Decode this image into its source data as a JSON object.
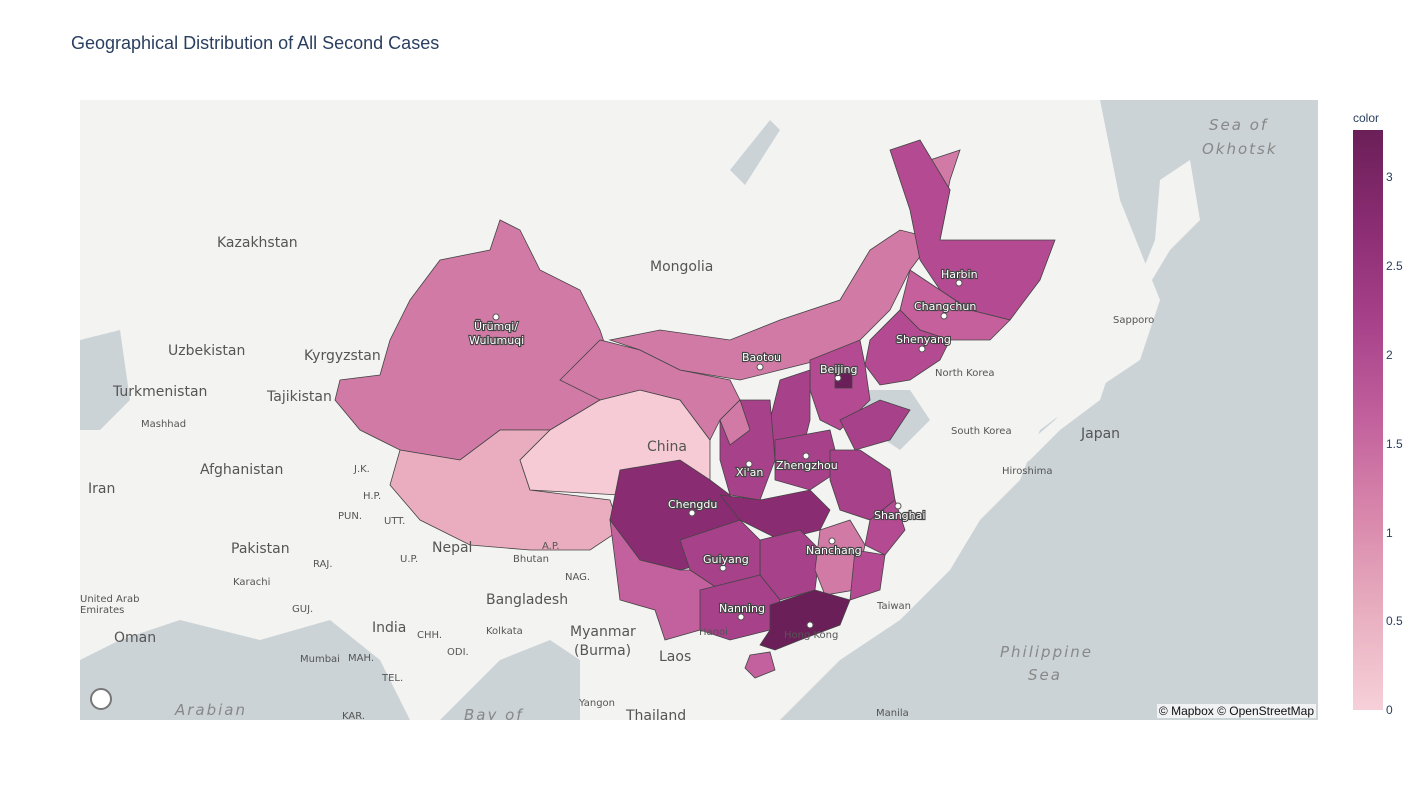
{
  "title": "Geographical Distribution of All Second Cases",
  "attribution": "© Mapbox © OpenStreetMap",
  "colorbar": {
    "title": "color",
    "ticks": [
      "3",
      "2.5",
      "2",
      "1.5",
      "1",
      "0.5",
      "0"
    ],
    "colors": [
      "#6b1f58",
      "#8a2c72",
      "#a7418a",
      "#c2619d",
      "#d886ab",
      "#e8aebf",
      "#f6d0d9"
    ]
  },
  "map_labels": {
    "countries": [
      "Kazakhstan",
      "Mongolia",
      "Uzbekistan",
      "Kyrgyzstan",
      "Turkmenistan",
      "Tajikistan",
      "Afghanistan",
      "Iran",
      "Pakistan",
      "Nepal",
      "India",
      "Bangladesh",
      "Myanmar",
      "(Burma)",
      "Laos",
      "Thailand",
      "Oman",
      "Japan",
      "China"
    ],
    "cities": [
      "Ürümqi/",
      "Wulumuqi",
      "Harbin",
      "Changchun",
      "Shenyang",
      "Baotou",
      "Beijing",
      "Zhengzhou",
      "Xi'an",
      "Chengdu",
      "Shanghai",
      "Nanchang",
      "Guiyang",
      "Nanning",
      "Hong Kong"
    ],
    "small": [
      "Sapporo",
      "North Korea",
      "South Korea",
      "Hiroshima",
      "Taiwan",
      "Manila",
      "Mashhad",
      "Karachi",
      "Mumbai",
      "Kolkata",
      "Yangon",
      "Hanoi",
      "Bhutan",
      "United Arab",
      "Emirates",
      "J.K.",
      "H.P.",
      "PUN.",
      "UTT.",
      "RAJ.",
      "GUJ.",
      "U.P.",
      "CHH.",
      "MAH.",
      "TEL.",
      "ODI.",
      "A.P.",
      "NAG.",
      "KAR."
    ],
    "seas": [
      "Sea of",
      "Okhotsk",
      "Philippine",
      "Sea",
      "Arabian",
      "Bay of"
    ]
  },
  "chart_data": {
    "type": "choropleth",
    "colorbar": {
      "title": "color",
      "range": [
        0,
        3.25
      ]
    },
    "regions": [
      {
        "region": "Xinjiang",
        "value": 1.2
      },
      {
        "region": "Tibet",
        "value": 0.8
      },
      {
        "region": "Qinghai",
        "value": 0.3
      },
      {
        "region": "Inner Mongolia",
        "value": 1.3
      },
      {
        "region": "Heilongjiang",
        "value": 2.2
      },
      {
        "region": "Jilin",
        "value": 1.5
      },
      {
        "region": "Liaoning",
        "value": 2.3
      },
      {
        "region": "Beijing",
        "value": 3.2
      },
      {
        "region": "Sichuan",
        "value": 2.6
      },
      {
        "region": "Yunnan",
        "value": 1.7
      },
      {
        "region": "Guangdong",
        "value": 3.2
      },
      {
        "region": "Hainan",
        "value": 1.6
      },
      {
        "region": "Jiangxi",
        "value": 1.4
      }
    ]
  }
}
